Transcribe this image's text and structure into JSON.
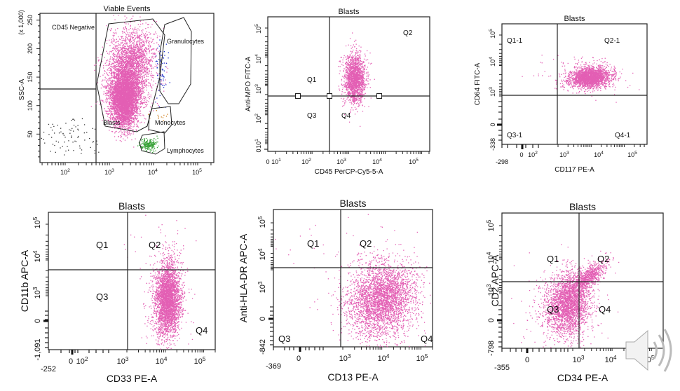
{
  "chart_data": [
    {
      "type": "scatter",
      "title": "Viable Events",
      "xlabel": "",
      "ylabel": "SSC-A",
      "y_multiplier_label": "(x 1,000)",
      "x_scale": "log",
      "xlim": [
        30,
        250000
      ],
      "ylim": [
        0,
        262
      ],
      "x_tick_labels": [
        "10^2",
        "10^3",
        "10^4",
        "10^5"
      ],
      "y_tick_labels": [
        "50",
        "100",
        "150",
        "200",
        "250"
      ],
      "gates": [
        {
          "name": "CD45 Negative",
          "shape": "rectangle",
          "x": [
            30,
            500
          ],
          "y": [
            128,
            262
          ]
        },
        {
          "name": "Blasts",
          "shape": "polygon",
          "color": "#e060b0"
        },
        {
          "name": "Granulocytes",
          "shape": "polygon",
          "color": "#2030c0"
        },
        {
          "name": "Monocytes",
          "shape": "polygon",
          "color": "#d08020"
        },
        {
          "name": "Lymphocytes",
          "shape": "polygon",
          "color": "#30a030"
        }
      ],
      "populations": [
        {
          "name": "Blasts",
          "color": "#e060b0",
          "x_center": 2200,
          "y_center": 110
        },
        {
          "name": "Granulocytes",
          "color": "#2030c0",
          "x_center": 16000,
          "y_center": 160
        },
        {
          "name": "Monocytes",
          "color": "#d08020",
          "x_center": 9000,
          "y_center": 80
        },
        {
          "name": "Lymphocytes",
          "color": "#30a030",
          "x_center": 8000,
          "y_center": 28
        },
        {
          "name": "CD45 Negative",
          "color": "#333333",
          "x_center": 150,
          "y_center": 50
        }
      ]
    },
    {
      "type": "scatter",
      "title": "Blasts",
      "xlabel": "CD45 PerCP-Cy5-5-A",
      "ylabel": "Anti-MPO FITC-A",
      "x_scale": "log",
      "y_scale": "log",
      "x_tick_labels": [
        "0",
        "10^1",
        "10^2",
        "10^3",
        "10^4",
        "10^5"
      ],
      "y_tick_labels": [
        "0",
        "10^1",
        "10^2",
        "10^3",
        "10^4",
        "10^5"
      ],
      "quadrant_divider": {
        "x": 500,
        "y": 600
      },
      "quadrants": [
        "Q1",
        "Q2",
        "Q3",
        "Q4"
      ],
      "population": {
        "color": "#e060b0",
        "x_center": 2200,
        "y_center": 2500
      }
    },
    {
      "type": "scatter",
      "title": "Blasts",
      "xlabel": "CD117 PE-A",
      "ylabel": "CD64 FITC-A",
      "x_scale": "biexponential",
      "y_scale": "biexponential",
      "x_min_label": "-298",
      "y_min_label": "-338",
      "x_tick_labels": [
        "0",
        "10^2",
        "10^3",
        "10^4",
        "10^5"
      ],
      "y_tick_labels": [
        "0",
        "10^3",
        "10^4",
        "10^5"
      ],
      "quadrant_divider": {
        "x": 600,
        "y": 800
      },
      "quadrants": [
        "Q1-1",
        "Q2-1",
        "Q3-1",
        "Q4-1"
      ],
      "population": {
        "color": "#e060b0",
        "x_center": 5500,
        "y_center": 3000
      }
    },
    {
      "type": "scatter",
      "title": "Blasts",
      "xlabel": "CD33 PE-A",
      "ylabel": "CD11b APC-A",
      "x_scale": "biexponential",
      "y_scale": "biexponential",
      "x_min_label": "-252",
      "y_min_label": "-1,091",
      "x_tick_labels": [
        "0",
        "10^2",
        "10^3",
        "10^4",
        "10^5"
      ],
      "y_tick_labels": [
        "0",
        "10^3",
        "10^4",
        "10^5"
      ],
      "quadrant_divider": {
        "x": 1400,
        "y": 4000
      },
      "quadrants": [
        "Q1",
        "Q2",
        "Q3",
        "Q4"
      ],
      "population": {
        "color": "#e060b0",
        "x_center": 15000,
        "y_center": 600
      }
    },
    {
      "type": "scatter",
      "title": "Blasts",
      "xlabel": "CD13 PE-A",
      "ylabel": "Anti-HLA-DR APC-A",
      "x_scale": "biexponential",
      "y_scale": "biexponential",
      "x_min_label": "-369",
      "y_min_label": "-842",
      "x_tick_labels": [
        "0",
        "10^3",
        "10^4",
        "10^5"
      ],
      "y_tick_labels": [
        "0",
        "10^3",
        "10^4",
        "10^5"
      ],
      "quadrant_divider": {
        "x": 800,
        "y": 3500
      },
      "quadrants": [
        "Q1",
        "Q2",
        "Q3",
        "Q4"
      ],
      "population": {
        "color": "#e060b0",
        "x_center": 8000,
        "y_center": 800
      }
    },
    {
      "type": "scatter",
      "title": "Blasts",
      "xlabel": "CD34 PE-A",
      "ylabel": "CD2 APC-A",
      "x_scale": "biexponential",
      "y_scale": "biexponential",
      "x_min_label": "-355",
      "y_min_label": "-798",
      "x_tick_labels": [
        "0",
        "10^3",
        "10^4",
        "10^5"
      ],
      "y_tick_labels": [
        "0",
        "10^3",
        "10^4",
        "10^5"
      ],
      "quadrant_divider": {
        "x": 1400,
        "y": 2000
      },
      "quadrants": [
        "Q1",
        "Q2",
        "Q3",
        "Q4"
      ],
      "population": {
        "color": "#e060b0",
        "x_center": 600,
        "y_center": 400
      }
    }
  ],
  "overlay": {
    "icon": "speaker-volume-icon"
  }
}
